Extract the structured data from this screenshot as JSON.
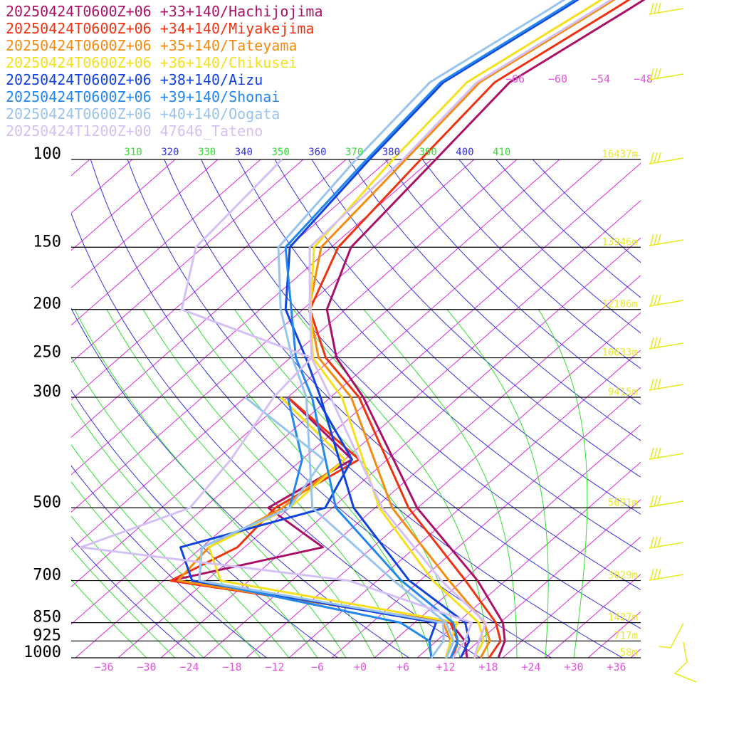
{
  "chart_data": {
    "type": "line",
    "title": "",
    "pressure_levels": [
      100,
      150,
      200,
      250,
      300,
      500,
      700,
      850,
      925,
      1000
    ],
    "pressure_tick_labels": [
      "100",
      "150",
      "200",
      "250",
      "300",
      "500",
      "700",
      "850",
      "925",
      "1000"
    ],
    "temperature_ticks": [
      -36,
      -30,
      -24,
      -18,
      -12,
      -6,
      0,
      6,
      12,
      18,
      24,
      30,
      36
    ],
    "temperature_tick_labels": [
      "−36",
      "−30",
      "−24",
      "−18",
      "−12",
      "−6",
      "+0",
      "+6",
      "+12",
      "+18",
      "+24",
      "+30",
      "+36"
    ],
    "upper_temperature_labels": [
      {
        "value": -66,
        "text": "−66"
      },
      {
        "value": -60,
        "text": "−60"
      },
      {
        "value": -54,
        "text": "−54"
      },
      {
        "value": -48,
        "text": "−48"
      }
    ],
    "theta_labels": [
      "310",
      "320",
      "330",
      "340",
      "350",
      "360",
      "370",
      "380",
      "390",
      "400",
      "410"
    ],
    "height_labels": [
      {
        "pressure": 100,
        "text": "16437m"
      },
      {
        "pressure": 150,
        "text": "13946m"
      },
      {
        "pressure": 200,
        "text": "12106m"
      },
      {
        "pressure": 250,
        "text": "10633m"
      },
      {
        "pressure": 300,
        "text": "9415m"
      },
      {
        "pressure": 500,
        "text": "5691m"
      },
      {
        "pressure": 700,
        "text": "3029m"
      },
      {
        "pressure": 850,
        "text": "1427m"
      },
      {
        "pressure": 925,
        "text": "717m"
      },
      {
        "pressure": 1000,
        "text": "58m"
      }
    ],
    "x_range": [
      -40,
      40
    ],
    "y_range_hpa": [
      100,
      1000
    ],
    "y_scale": "log",
    "skew": "skew-T",
    "grid": true,
    "legend_position": "top-left",
    "colors": {
      "isotherm": "#dd22dd",
      "dry_adiabat": "#3333dd",
      "moist_adiabat": "#33dd33",
      "isobar": "#000000",
      "tick_label": "#dd55dd",
      "pressure_label": "#000000",
      "height_label": "#e8e830",
      "wind_barb": "#e8e820"
    },
    "series": [
      {
        "name": "20250424T0600Z+06 +33+140/Hachijojima",
        "color": "#aa1166",
        "temperature": [
          [
            100,
            -69.4
          ],
          [
            150,
            -67.2
          ],
          [
            200,
            -60.6
          ],
          [
            250,
            -51.5
          ],
          [
            300,
            -41.4
          ],
          [
            500,
            -16.1
          ],
          [
            700,
            4.1
          ],
          [
            850,
            14.4
          ],
          [
            925,
            17.6
          ],
          [
            1000,
            19.4
          ]
        ],
        "dewpoint": [
          [
            300,
            -52
          ],
          [
            400,
            -33
          ],
          [
            500,
            -37
          ],
          [
            600,
            -23
          ],
          [
            700,
            -39
          ],
          [
            850,
            7
          ],
          [
            925,
            12
          ],
          [
            1000,
            15
          ]
        ]
      },
      {
        "name": "20250424T0600Z+06 +34+140/Miyakejima",
        "color": "#ee3311",
        "temperature": [
          [
            100,
            -71.5
          ],
          [
            150,
            -69
          ],
          [
            200,
            -63
          ],
          [
            250,
            -53
          ],
          [
            300,
            -42
          ],
          [
            500,
            -17.3
          ],
          [
            700,
            2.4
          ],
          [
            850,
            13.4
          ],
          [
            925,
            17
          ],
          [
            1000,
            18.1
          ]
        ],
        "dewpoint": [
          [
            300,
            -52
          ],
          [
            400,
            -32
          ],
          [
            500,
            -36
          ],
          [
            600,
            -35
          ],
          [
            700,
            -39
          ],
          [
            850,
            7
          ],
          [
            925,
            11
          ],
          [
            1000,
            13
          ]
        ]
      },
      {
        "name": "20250424T0600Z+06 +35+140/Tateyama",
        "color": "#f58c12",
        "temperature": [
          [
            100,
            -73.6
          ],
          [
            150,
            -71.4
          ],
          [
            200,
            -63.1
          ],
          [
            250,
            -54
          ],
          [
            300,
            -43.1
          ],
          [
            500,
            -19.6
          ],
          [
            700,
            0.1
          ],
          [
            850,
            11.8
          ],
          [
            925,
            15.5
          ],
          [
            1000,
            16.9
          ]
        ],
        "dewpoint": [
          [
            300,
            -53
          ],
          [
            400,
            -34
          ],
          [
            500,
            -35
          ],
          [
            600,
            -39
          ],
          [
            700,
            -38
          ],
          [
            850,
            6
          ],
          [
            925,
            10
          ],
          [
            1000,
            12
          ]
        ]
      },
      {
        "name": "20250424T0600Z+06 +36+140/Chikusei",
        "color": "#f5e020",
        "temperature": [
          [
            100,
            -75.4
          ],
          [
            150,
            -72.4
          ],
          [
            200,
            -62.9
          ],
          [
            250,
            -54.8
          ],
          [
            300,
            -44.4
          ],
          [
            500,
            -21.4
          ],
          [
            700,
            -2.2
          ],
          [
            850,
            11
          ],
          [
            925,
            14.6
          ],
          [
            1000,
            16
          ]
        ],
        "dewpoint": [
          [
            300,
            -53
          ],
          [
            400,
            -34
          ],
          [
            500,
            -34
          ],
          [
            600,
            -39
          ],
          [
            700,
            -32
          ],
          [
            850,
            8
          ],
          [
            925,
            10
          ],
          [
            1000,
            12
          ]
        ]
      },
      {
        "name": "20250424T0600Z+06 +38+140/Aizu",
        "color": "#1144dd",
        "temperature": [
          [
            100,
            -78.7
          ],
          [
            150,
            -75.8
          ],
          [
            200,
            -66.4
          ],
          [
            250,
            -55.8
          ],
          [
            300,
            -47.4
          ],
          [
            500,
            -25
          ],
          [
            700,
            -5.5
          ],
          [
            850,
            9.1
          ],
          [
            925,
            12.6
          ],
          [
            1000,
            14.1
          ]
        ],
        "dewpoint": [
          [
            300,
            -48
          ],
          [
            400,
            -33
          ],
          [
            500,
            -29
          ],
          [
            600,
            -43
          ],
          [
            700,
            -36
          ],
          [
            850,
            5
          ],
          [
            925,
            7
          ],
          [
            1000,
            10
          ]
        ]
      },
      {
        "name": "20250424T0600Z+06 +39+140/Shonai",
        "color": "#2288ee",
        "temperature": [
          [
            100,
            -79.1
          ],
          [
            150,
            -76.4
          ],
          [
            200,
            -65.6
          ],
          [
            250,
            -57.2
          ],
          [
            300,
            -48.6
          ],
          [
            500,
            -27.5
          ],
          [
            700,
            -6.6
          ],
          [
            850,
            7.4
          ],
          [
            925,
            11
          ],
          [
            1000,
            12.7
          ]
        ],
        "dewpoint": [
          [
            300,
            -52
          ],
          [
            400,
            -40
          ],
          [
            500,
            -34
          ],
          [
            600,
            -40
          ],
          [
            700,
            -35
          ],
          [
            850,
            0
          ],
          [
            925,
            7
          ],
          [
            1000,
            10
          ]
        ]
      },
      {
        "name": "20250424T0600Z+06 +40+140/Oogata",
        "color": "#99c4ee",
        "temperature": [
          [
            100,
            -80.6
          ],
          [
            150,
            -77.4
          ],
          [
            200,
            -67.1
          ],
          [
            250,
            -57.7
          ],
          [
            300,
            -49.4
          ],
          [
            500,
            -30.8
          ],
          [
            700,
            -7.7
          ],
          [
            850,
            6.4
          ],
          [
            925,
            10.4
          ],
          [
            1000,
            12.1
          ]
        ],
        "dewpoint": [
          [
            300,
            -58
          ],
          [
            400,
            -37
          ],
          [
            500,
            -34
          ],
          [
            600,
            -40
          ],
          [
            700,
            -35
          ],
          [
            850,
            6
          ],
          [
            925,
            9
          ],
          [
            1000,
            10
          ]
        ]
      },
      {
        "name": "20250424T1200Z+00 47646_Tateno",
        "color": "#d4c0f4",
        "temperature": [
          [
            100,
            -74
          ],
          [
            150,
            -73
          ],
          [
            200,
            -63
          ],
          [
            250,
            -55
          ],
          [
            300,
            -46
          ],
          [
            500,
            -21
          ],
          [
            700,
            -1
          ],
          [
            850,
            12
          ],
          [
            925,
            14
          ],
          [
            1000,
            16
          ]
        ],
        "dewpoint": [
          [
            100,
            -91
          ],
          [
            150,
            -89
          ],
          [
            200,
            -81
          ],
          [
            250,
            -55
          ],
          [
            300,
            -54
          ],
          [
            400,
            -50
          ],
          [
            500,
            -48
          ],
          [
            600,
            -57
          ],
          [
            700,
            -14
          ],
          [
            850,
            10
          ],
          [
            925,
            12
          ],
          [
            1000,
            13
          ]
        ]
      }
    ]
  }
}
